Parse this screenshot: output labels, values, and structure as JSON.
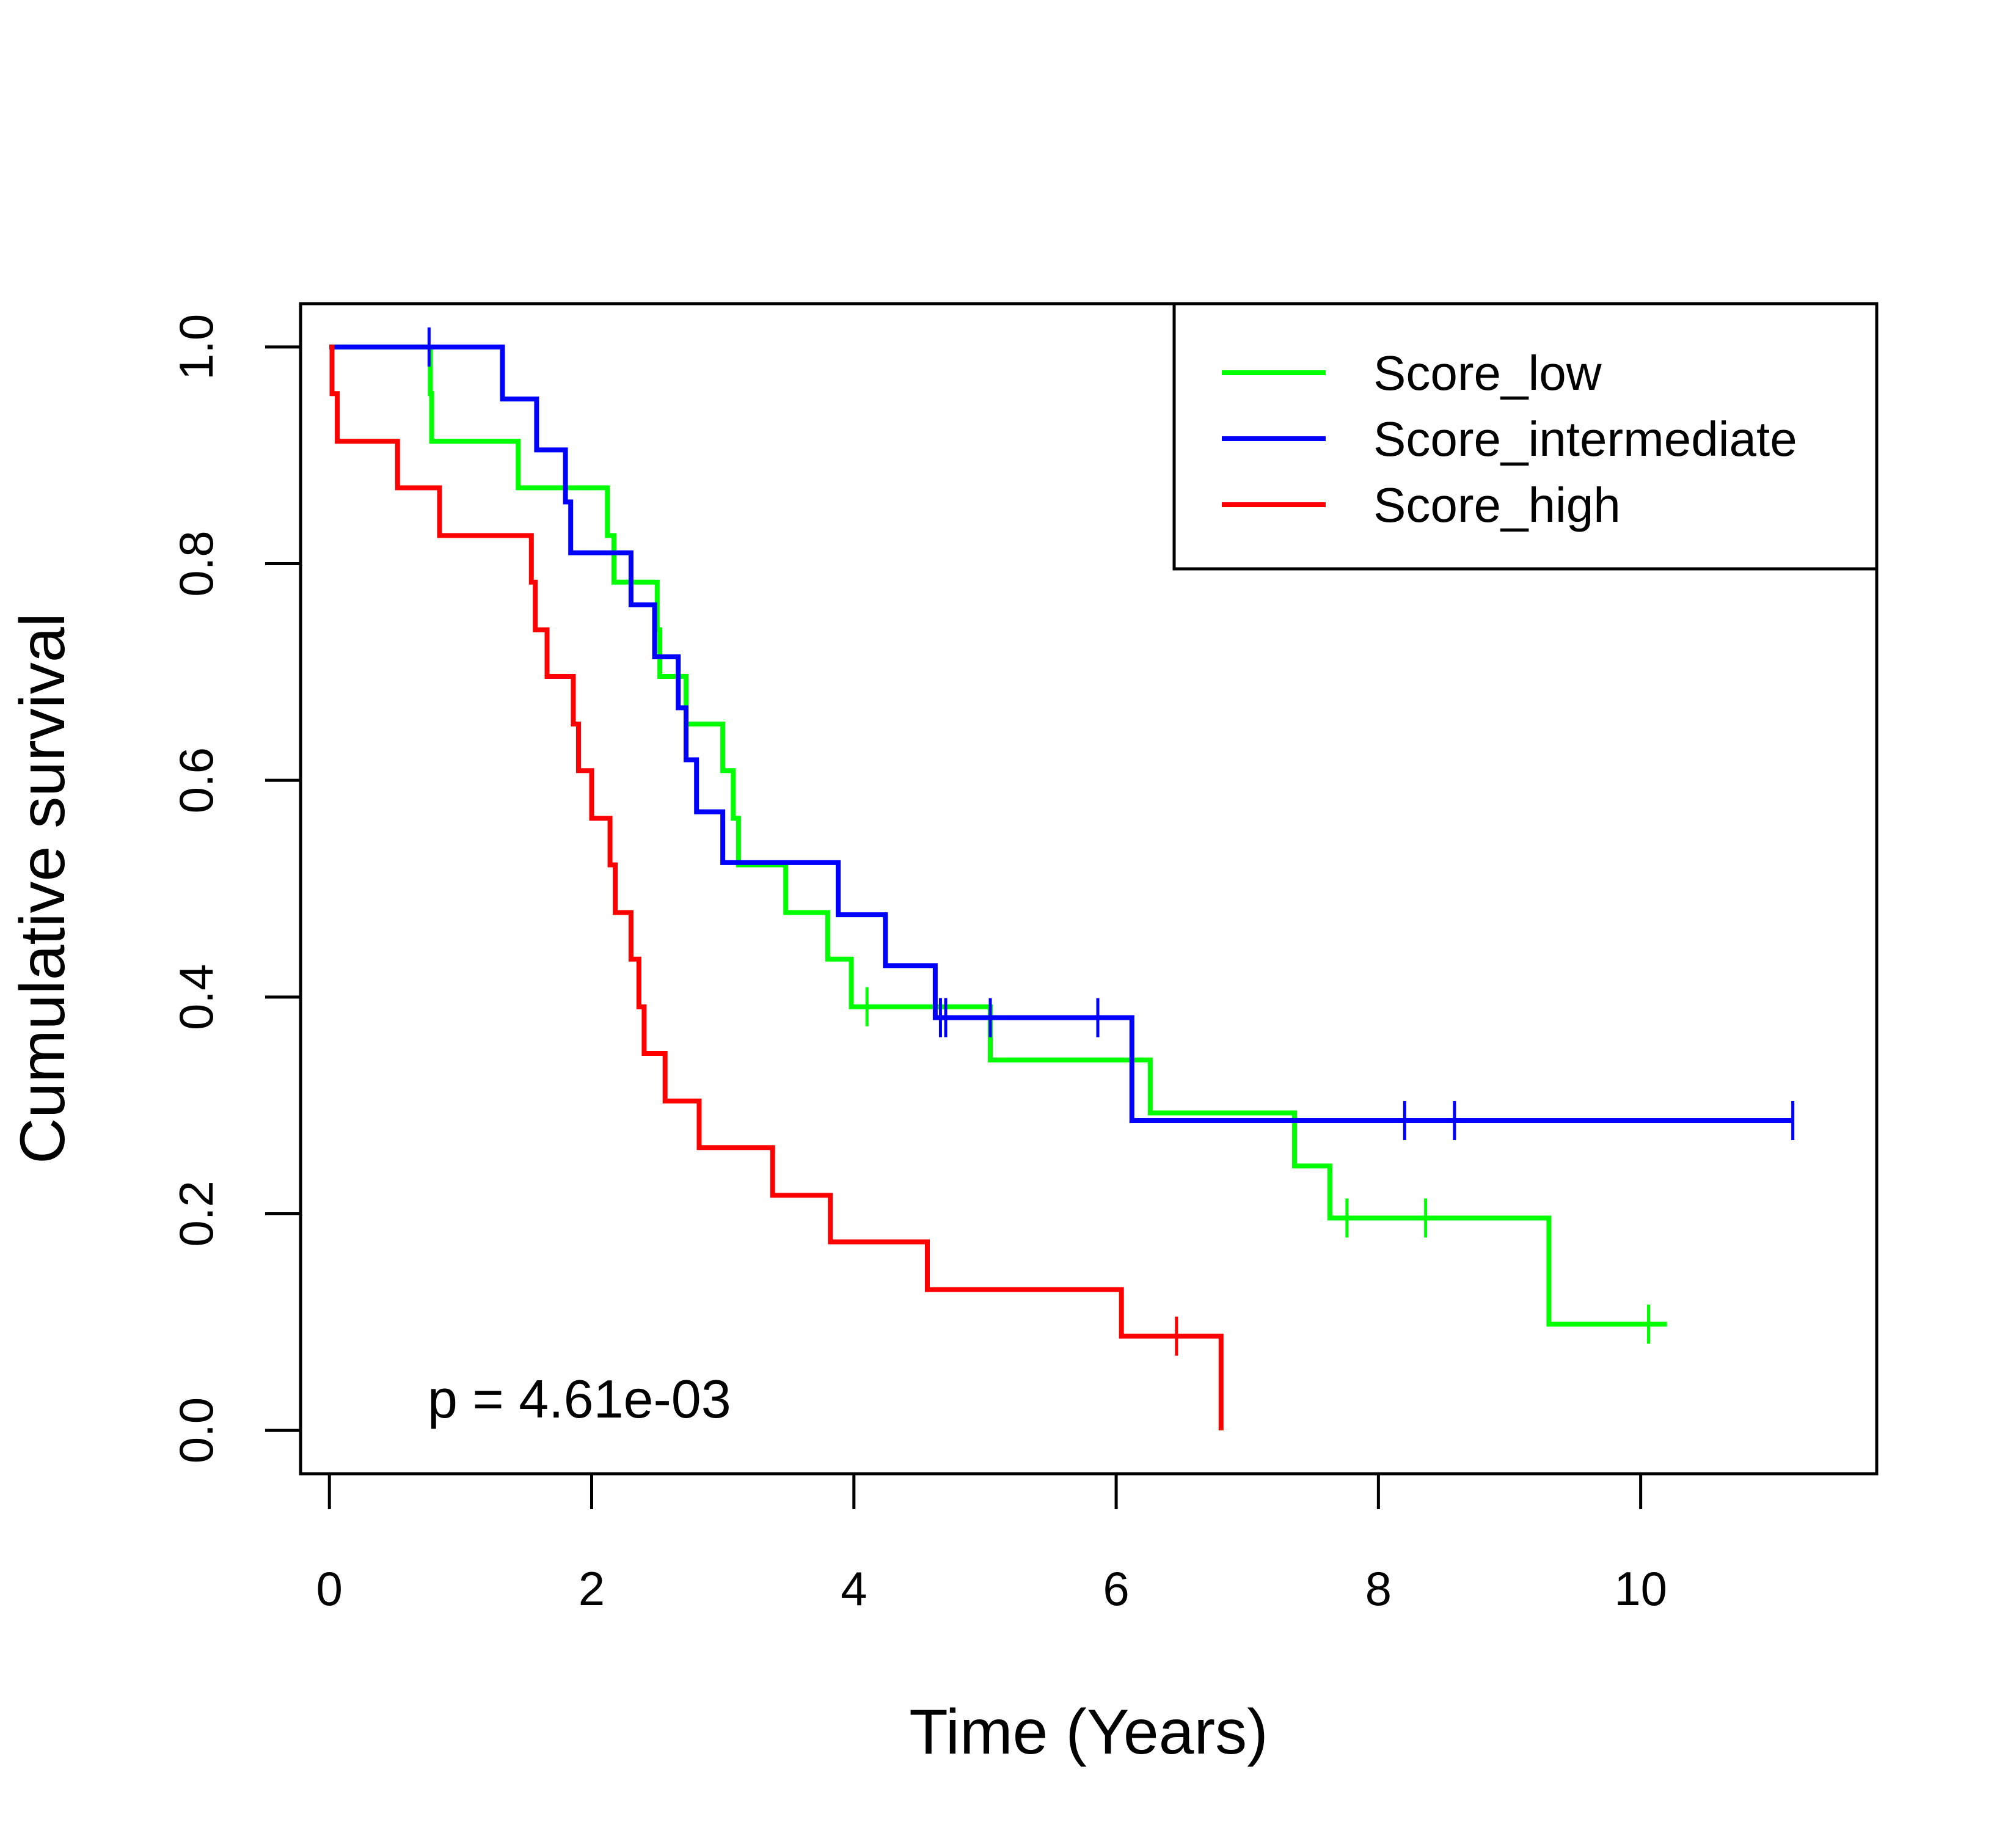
{
  "chart_data": {
    "type": "line",
    "title": "",
    "xlabel": "Time (Years)",
    "ylabel": "Cumulative survival",
    "xlim": [
      -0.22,
      11.8
    ],
    "ylim": [
      -0.04,
      1.04
    ],
    "x_ticks": [
      0,
      2,
      4,
      6,
      8,
      10
    ],
    "y_ticks": [
      0.0,
      0.2,
      0.4,
      0.6,
      0.8,
      1.0
    ],
    "x_tick_labels": [
      "0",
      "2",
      "4",
      "6",
      "8",
      "10"
    ],
    "y_tick_labels": [
      "0.0",
      "0.2",
      "0.4",
      "0.6",
      "0.8",
      "1.0"
    ],
    "grid": false,
    "legend_position": "top-right",
    "annotation": "p = 4.61e-03",
    "series": [
      {
        "name": "Score_low",
        "color": "#00ff00",
        "steps": [
          [
            0.0,
            1.0
          ],
          [
            0.77,
            0.957
          ],
          [
            0.78,
            0.913
          ],
          [
            1.44,
            0.87
          ],
          [
            2.12,
            0.826
          ],
          [
            2.17,
            0.783
          ],
          [
            2.5,
            0.739
          ],
          [
            2.52,
            0.696
          ],
          [
            2.72,
            0.652
          ],
          [
            3.0,
            0.609
          ],
          [
            3.08,
            0.565
          ],
          [
            3.12,
            0.522
          ],
          [
            3.48,
            0.478
          ],
          [
            3.8,
            0.435
          ],
          [
            3.98,
            0.391
          ],
          [
            5.04,
            0.342
          ],
          [
            6.26,
            0.293
          ],
          [
            7.36,
            0.244
          ],
          [
            7.63,
            0.196
          ],
          [
            9.3,
            0.098
          ]
        ],
        "end_x": 10.2,
        "censor_points": [
          [
            4.1,
            0.391
          ],
          [
            7.76,
            0.196
          ],
          [
            8.36,
            0.196
          ],
          [
            10.06,
            0.098
          ]
        ]
      },
      {
        "name": "Score_intermediate",
        "color": "#0000ff",
        "steps": [
          [
            0.0,
            1.0
          ],
          [
            1.32,
            0.952
          ],
          [
            1.58,
            0.905
          ],
          [
            1.8,
            0.857
          ],
          [
            1.84,
            0.81
          ],
          [
            2.3,
            0.762
          ],
          [
            2.48,
            0.714
          ],
          [
            2.66,
            0.667
          ],
          [
            2.72,
            0.619
          ],
          [
            2.8,
            0.571
          ],
          [
            3.0,
            0.524
          ],
          [
            3.88,
            0.476
          ],
          [
            4.24,
            0.429
          ],
          [
            4.62,
            0.381
          ],
          [
            6.12,
            0.286
          ]
        ],
        "end_x": 11.16,
        "censor_points": [
          [
            0.76,
            1.0
          ],
          [
            4.66,
            0.381
          ],
          [
            4.7,
            0.381
          ],
          [
            5.04,
            0.381
          ],
          [
            5.86,
            0.381
          ],
          [
            8.2,
            0.286
          ],
          [
            8.58,
            0.286
          ],
          [
            11.16,
            0.286
          ]
        ]
      },
      {
        "name": "Score_high",
        "color": "#ff0000",
        "steps": [
          [
            0.0,
            1.0
          ],
          [
            0.02,
            0.957
          ],
          [
            0.06,
            0.913
          ],
          [
            0.52,
            0.87
          ],
          [
            0.84,
            0.826
          ],
          [
            1.54,
            0.783
          ],
          [
            1.57,
            0.739
          ],
          [
            1.66,
            0.696
          ],
          [
            1.86,
            0.652
          ],
          [
            1.9,
            0.609
          ],
          [
            2.0,
            0.565
          ],
          [
            2.14,
            0.522
          ],
          [
            2.18,
            0.478
          ],
          [
            2.3,
            0.435
          ],
          [
            2.36,
            0.391
          ],
          [
            2.4,
            0.348
          ],
          [
            2.56,
            0.304
          ],
          [
            2.82,
            0.261
          ],
          [
            3.38,
            0.217
          ],
          [
            3.82,
            0.174
          ],
          [
            4.56,
            0.13
          ],
          [
            6.04,
            0.087
          ],
          [
            6.8,
            0.0
          ]
        ],
        "end_x": 6.8,
        "censor_points": [
          [
            6.46,
            0.087
          ]
        ]
      }
    ]
  }
}
